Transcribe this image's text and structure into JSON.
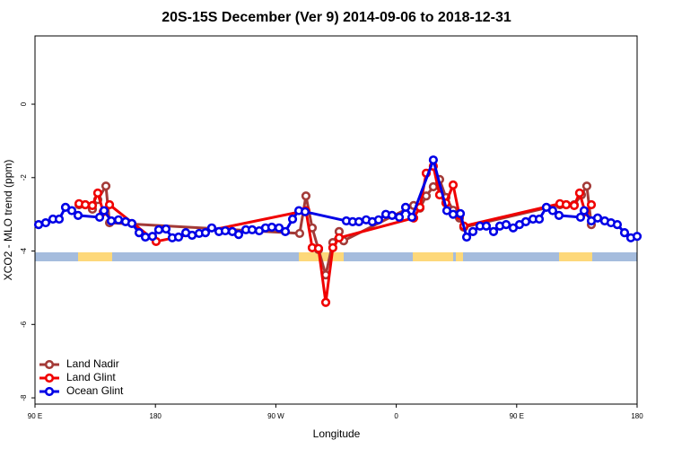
{
  "chart_data": {
    "type": "line",
    "title": "20S-15S December (Ver 9)   2014-09-06 to 2018-12-31",
    "xlabel": "Longitude",
    "ylabel": "XCO2 - MLO trend (ppm)",
    "xlim": [
      90,
      540
    ],
    "ylim": [
      -8.17,
      1.86
    ],
    "xticks": [
      {
        "value": 90,
        "label": "90 E"
      },
      {
        "value": 180,
        "label": "180"
      },
      {
        "value": 270,
        "label": "90 W"
      },
      {
        "value": 360,
        "label": "0"
      },
      {
        "value": 450,
        "label": "90 E"
      },
      {
        "value": 540,
        "label": "180"
      }
    ],
    "yticks": [
      0,
      -2,
      -4,
      -6,
      -8
    ],
    "legend": "bottom-left",
    "series": [
      {
        "name": "Land Nadir",
        "color": "#a33a37",
        "x": [
          122.9,
          127.6,
          132.9,
          136.9,
          143.0,
          145.7,
          287.8,
          292.5,
          297.2,
          301.9,
          307.3,
          312.6,
          317.3,
          320.7,
          373.0,
          377.7,
          382.4,
          387.7,
          392.4,
          397.1,
          402.5,
          407.2,
          410.5,
          482.3,
          487.0,
          493.0,
          498.4,
          502.4,
          505.8
        ],
        "values": [
          -2.74,
          -2.74,
          -2.86,
          -2.6,
          -2.23,
          -3.23,
          -3.52,
          -2.5,
          -3.37,
          -3.96,
          -4.65,
          -3.77,
          -3.47,
          -3.72,
          -2.76,
          -2.83,
          -2.5,
          -2.25,
          -2.05,
          -2.54,
          -2.89,
          -3.1,
          -3.35,
          -2.74,
          -2.74,
          -2.74,
          -2.47,
          -2.23,
          -3.28
        ]
      },
      {
        "name": "Land Glint",
        "color": "#f00000",
        "x": [
          122.9,
          127.6,
          132.9,
          136.9,
          141.0,
          145.7,
          180.5,
          292.5,
          297.2,
          301.9,
          307.3,
          312.6,
          317.3,
          373.0,
          377.7,
          382.4,
          387.7,
          392.4,
          397.1,
          402.5,
          407.2,
          410.5,
          482.3,
          487.0,
          493.0,
          497.0,
          501.1,
          505.8
        ],
        "values": [
          -2.71,
          -2.74,
          -2.76,
          -2.42,
          -2.93,
          -2.74,
          -3.74,
          -2.9,
          -3.91,
          -3.93,
          -5.4,
          -3.91,
          -3.64,
          -3.1,
          -2.81,
          -1.88,
          -1.69,
          -2.47,
          -2.69,
          -2.2,
          -3.03,
          -3.32,
          -2.71,
          -2.74,
          -2.76,
          -2.42,
          -2.93,
          -2.74
        ]
      },
      {
        "name": "Ocean Glint",
        "color": "#0000e6",
        "x": [
          92.7,
          98.0,
          103.4,
          108.1,
          112.8,
          117.5,
          122.2,
          138.3,
          141.6,
          147.0,
          152.4,
          157.7,
          162.4,
          167.8,
          172.5,
          177.8,
          182.5,
          187.9,
          192.6,
          197.3,
          202.7,
          207.4,
          212.7,
          217.4,
          222.1,
          227.5,
          232.2,
          237.5,
          242.2,
          247.6,
          252.3,
          257.6,
          262.3,
          267.0,
          272.4,
          277.1,
          282.5,
          287.2,
          291.9,
          322.7,
          327.4,
          332.1,
          337.5,
          342.1,
          346.8,
          352.2,
          356.9,
          362.3,
          367.0,
          371.7,
          387.7,
          397.8,
          402.5,
          407.9,
          412.6,
          417.3,
          422.6,
          427.3,
          432.7,
          437.4,
          442.1,
          447.4,
          452.1,
          456.8,
          462.2,
          466.9,
          472.2,
          476.9,
          481.6,
          497.7,
          500.4,
          505.8,
          510.5,
          515.8,
          520.5,
          525.2,
          530.6,
          535.3,
          540
        ],
        "values": [
          -3.28,
          -3.23,
          -3.13,
          -3.13,
          -2.81,
          -2.9,
          -3.03,
          -3.08,
          -2.9,
          -3.18,
          -3.15,
          -3.2,
          -3.25,
          -3.5,
          -3.62,
          -3.6,
          -3.42,
          -3.4,
          -3.64,
          -3.62,
          -3.5,
          -3.57,
          -3.52,
          -3.5,
          -3.37,
          -3.47,
          -3.45,
          -3.47,
          -3.55,
          -3.42,
          -3.42,
          -3.45,
          -3.37,
          -3.35,
          -3.37,
          -3.47,
          -3.13,
          -2.9,
          -2.93,
          -3.18,
          -3.2,
          -3.2,
          -3.15,
          -3.2,
          -3.15,
          -3.0,
          -3.03,
          -3.08,
          -2.81,
          -3.08,
          -1.52,
          -2.9,
          -3.0,
          -2.98,
          -3.62,
          -3.47,
          -3.32,
          -3.32,
          -3.47,
          -3.32,
          -3.28,
          -3.37,
          -3.28,
          -3.2,
          -3.13,
          -3.13,
          -2.81,
          -2.9,
          -3.03,
          -3.08,
          -2.9,
          -3.18,
          -3.1,
          -3.18,
          -3.23,
          -3.28,
          -3.5,
          -3.64,
          -3.6
        ]
      }
    ]
  }
}
